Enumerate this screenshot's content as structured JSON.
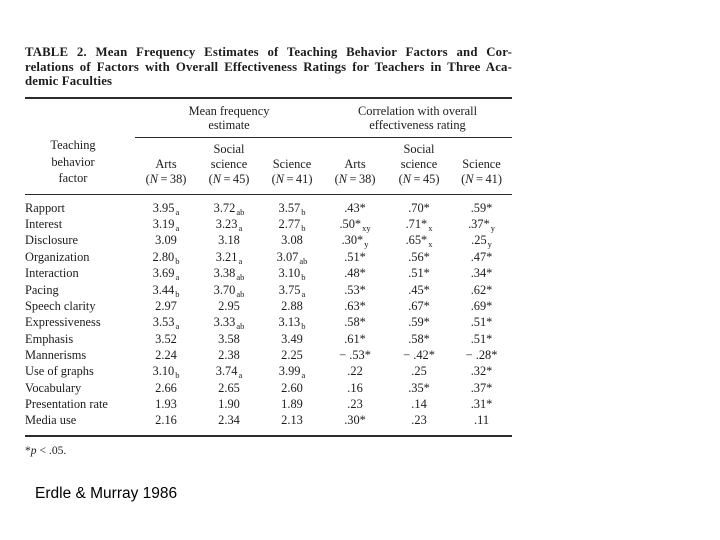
{
  "scan": {
    "title_lines": [
      "TABLE 2. Mean Frequency Estimates of Teaching Behavior Factors and Cor-",
      "relations of Factors with Overall Effectiveness Ratings for Teachers in Three Aca-",
      "demic Faculties"
    ],
    "table": {
      "row_header": "Teaching\nbehavior\nfactor",
      "group_headers": [
        "Mean frequency\nestimate",
        "Correlation with overall\neffectiveness rating"
      ],
      "columns": [
        {
          "label": "Arts",
          "n": "38"
        },
        {
          "label": "Social\nscience",
          "n": "45"
        },
        {
          "label": "Science",
          "n": "41"
        },
        {
          "label": "Arts",
          "n": "38"
        },
        {
          "label": "Social\nscience",
          "n": "45"
        },
        {
          "label": "Science",
          "n": "41"
        }
      ],
      "rows": [
        {
          "factor": "Rapport",
          "cells": [
            [
              "3.95",
              "a"
            ],
            [
              "3.72",
              "ab"
            ],
            [
              "3.57",
              "b"
            ],
            [
              ".43*",
              ""
            ],
            [
              ".70*",
              ""
            ],
            [
              ".59*",
              ""
            ]
          ]
        },
        {
          "factor": "Interest",
          "cells": [
            [
              "3.19",
              "a"
            ],
            [
              "3.23",
              "a"
            ],
            [
              "2.77",
              "b"
            ],
            [
              ".50*",
              "xy"
            ],
            [
              ".71*",
              "x"
            ],
            [
              ".37*",
              "y"
            ]
          ]
        },
        {
          "factor": "Disclosure",
          "cells": [
            [
              "3.09",
              ""
            ],
            [
              "3.18",
              ""
            ],
            [
              "3.08",
              ""
            ],
            [
              ".30*",
              "y"
            ],
            [
              ".65*",
              "x"
            ],
            [
              ".25",
              "y"
            ]
          ]
        },
        {
          "factor": "Organization",
          "cells": [
            [
              "2.80",
              "b"
            ],
            [
              "3.21",
              "a"
            ],
            [
              "3.07",
              "ab"
            ],
            [
              ".51*",
              ""
            ],
            [
              ".56*",
              ""
            ],
            [
              ".47*",
              ""
            ]
          ]
        },
        {
          "factor": "Interaction",
          "cells": [
            [
              "3.69",
              "a"
            ],
            [
              "3.38",
              "ab"
            ],
            [
              "3.10",
              "b"
            ],
            [
              ".48*",
              ""
            ],
            [
              ".51*",
              ""
            ],
            [
              ".34*",
              ""
            ]
          ]
        },
        {
          "factor": "Pacing",
          "cells": [
            [
              "3.44",
              "b"
            ],
            [
              "3.70",
              "ab"
            ],
            [
              "3.75",
              "a"
            ],
            [
              ".53*",
              ""
            ],
            [
              ".45*",
              ""
            ],
            [
              ".62*",
              ""
            ]
          ]
        },
        {
          "factor": "Speech clarity",
          "cells": [
            [
              "2.97",
              ""
            ],
            [
              "2.95",
              ""
            ],
            [
              "2.88",
              ""
            ],
            [
              ".63*",
              ""
            ],
            [
              ".67*",
              ""
            ],
            [
              ".69*",
              ""
            ]
          ]
        },
        {
          "factor": "Expressiveness",
          "cells": [
            [
              "3.53",
              "a"
            ],
            [
              "3.33",
              "ab"
            ],
            [
              "3.13",
              "b"
            ],
            [
              ".58*",
              ""
            ],
            [
              ".59*",
              ""
            ],
            [
              ".51*",
              ""
            ]
          ]
        },
        {
          "factor": "Emphasis",
          "cells": [
            [
              "3.52",
              ""
            ],
            [
              "3.58",
              ""
            ],
            [
              "3.49",
              ""
            ],
            [
              ".61*",
              ""
            ],
            [
              ".58*",
              ""
            ],
            [
              ".51*",
              ""
            ]
          ]
        },
        {
          "factor": "Mannerisms",
          "cells": [
            [
              "2.24",
              ""
            ],
            [
              "2.38",
              ""
            ],
            [
              "2.25",
              ""
            ],
            [
              "− .53*",
              ""
            ],
            [
              "− .42*",
              ""
            ],
            [
              "− .28*",
              ""
            ]
          ]
        },
        {
          "factor": "Use of graphs",
          "cells": [
            [
              "3.10",
              "b"
            ],
            [
              "3.74",
              "a"
            ],
            [
              "3.99",
              "a"
            ],
            [
              ".22",
              ""
            ],
            [
              ".25",
              ""
            ],
            [
              ".32*",
              ""
            ]
          ]
        },
        {
          "factor": "Vocabulary",
          "cells": [
            [
              "2.66",
              ""
            ],
            [
              "2.65",
              ""
            ],
            [
              "2.60",
              ""
            ],
            [
              ".16",
              ""
            ],
            [
              ".35*",
              ""
            ],
            [
              ".37*",
              ""
            ]
          ]
        },
        {
          "factor": "Presentation rate",
          "cells": [
            [
              "1.93",
              ""
            ],
            [
              "1.90",
              ""
            ],
            [
              "1.89",
              ""
            ],
            [
              ".23",
              ""
            ],
            [
              ".14",
              ""
            ],
            [
              ".31*",
              ""
            ]
          ]
        },
        {
          "factor": "Media use",
          "cells": [
            [
              "2.16",
              ""
            ],
            [
              "2.34",
              ""
            ],
            [
              "2.13",
              ""
            ],
            [
              ".30*",
              ""
            ],
            [
              ".23",
              ""
            ],
            [
              ".11",
              ""
            ]
          ]
        }
      ],
      "footnote": "*p < .05."
    }
  },
  "caption": "Erdle & Murray 1986"
}
